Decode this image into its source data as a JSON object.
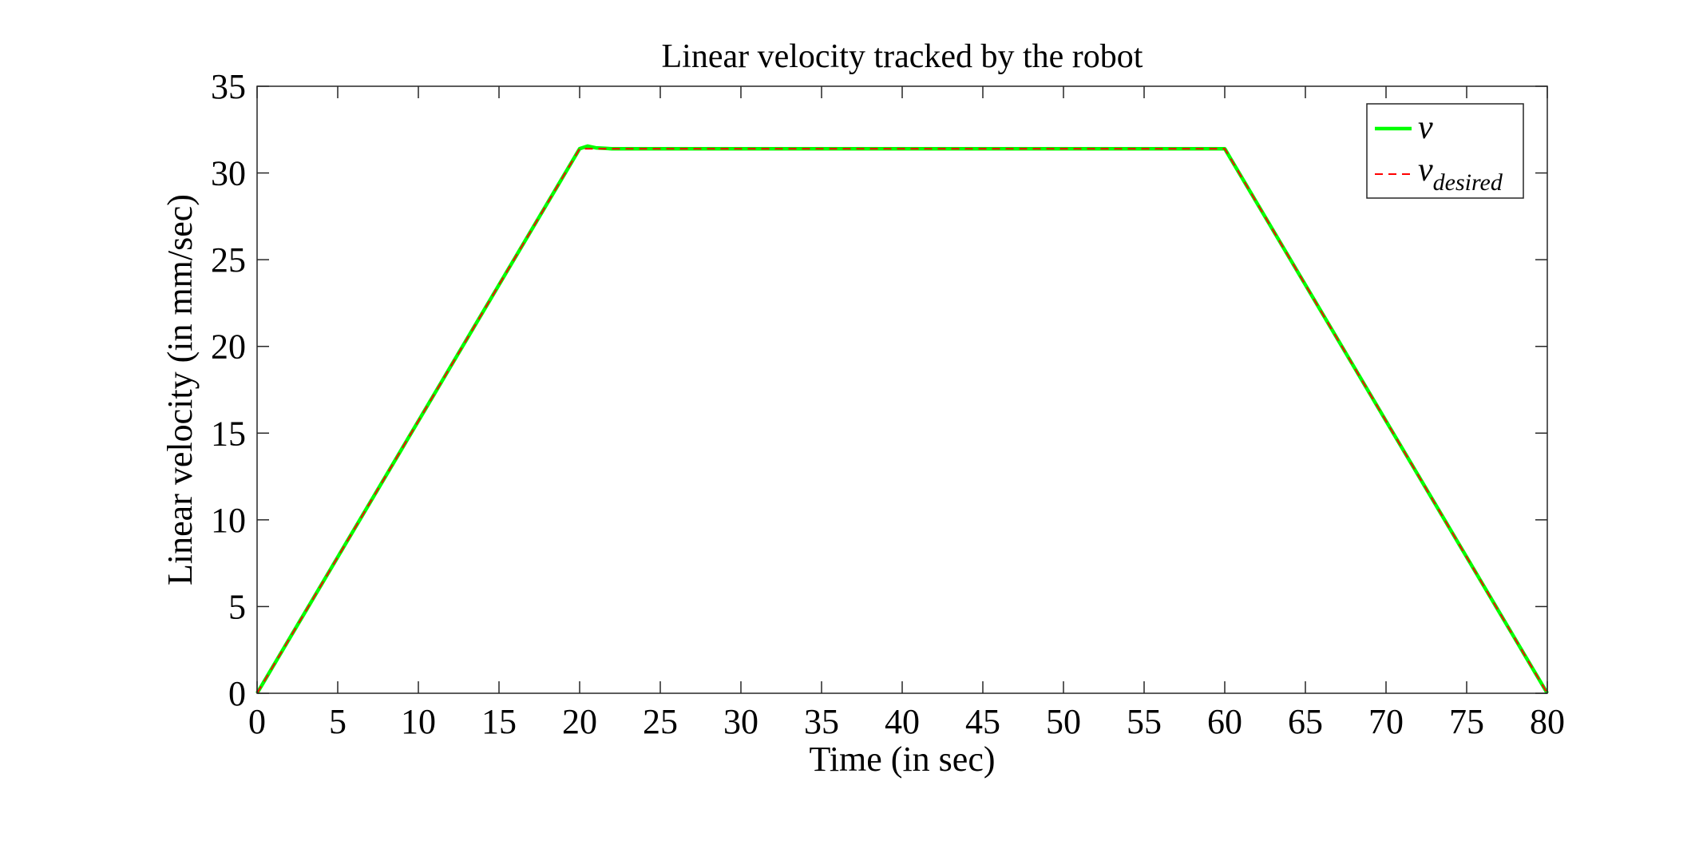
{
  "chart_data": {
    "type": "line",
    "title": "Linear velocity tracked by the robot",
    "xlabel": "Time (in sec)",
    "ylabel": "Linear velocity (in mm/sec)",
    "xlim": [
      0,
      80
    ],
    "ylim": [
      0,
      35
    ],
    "xticks": [
      0,
      5,
      10,
      15,
      20,
      25,
      30,
      35,
      40,
      45,
      50,
      55,
      60,
      65,
      70,
      75,
      80
    ],
    "yticks": [
      0,
      5,
      10,
      15,
      20,
      25,
      30,
      35
    ],
    "grid": false,
    "legend_position": "top-right",
    "series": [
      {
        "name": "v",
        "style": "solid",
        "color": "#00ff00",
        "x": [
          0,
          5,
          10,
          15,
          20,
          20.5,
          21,
          22,
          30,
          40,
          50,
          60,
          65,
          70,
          75,
          80
        ],
        "y": [
          0,
          7.85,
          15.7,
          23.55,
          31.4,
          31.55,
          31.45,
          31.4,
          31.4,
          31.4,
          31.4,
          31.4,
          23.55,
          15.7,
          7.85,
          0
        ]
      },
      {
        "name": "v",
        "subscript": "desired",
        "style": "dashed",
        "color": "#ff0000",
        "x": [
          0,
          20,
          60,
          80
        ],
        "y": [
          0,
          31.4,
          31.4,
          0
        ]
      }
    ]
  }
}
